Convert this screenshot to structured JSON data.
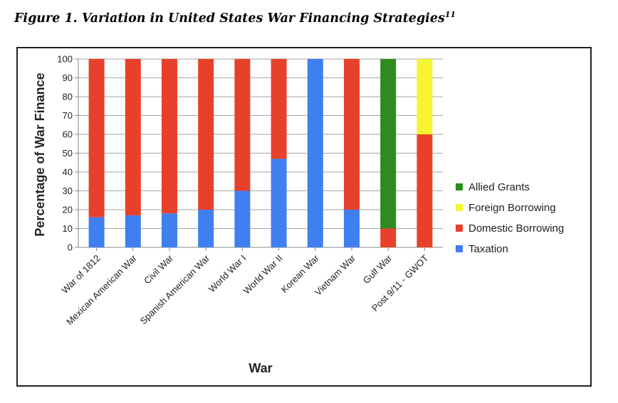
{
  "figure": {
    "title": "Figure 1. Variation in United States War Financing Strategies",
    "footnote": "11"
  },
  "chart_data": {
    "type": "bar",
    "stacked": true,
    "title": "",
    "xlabel": "War",
    "ylabel": "Percentage of War Finance",
    "ylim": [
      0,
      100
    ],
    "yticks": [
      0,
      10,
      20,
      30,
      40,
      50,
      60,
      70,
      80,
      90,
      100
    ],
    "grid": true,
    "legend_position": "right",
    "categories": [
      "War of 1812",
      "Mexican American War",
      "Civil War",
      "Spanish American War",
      "World War I",
      "World War II",
      "Korean War",
      "Vietnam War",
      "Gulf War",
      "Post 9/11 - GWOT"
    ],
    "series": [
      {
        "name": "Taxation",
        "color": "#3f7ff0",
        "values": [
          16,
          17,
          18,
          20,
          30,
          47,
          100,
          20,
          0,
          0
        ]
      },
      {
        "name": "Domestic Borrowing",
        "color": "#e8412b",
        "values": [
          84,
          83,
          82,
          80,
          70,
          53,
          0,
          80,
          10,
          60
        ]
      },
      {
        "name": "Foreign Borrowing",
        "color": "#f5f531",
        "values": [
          0,
          0,
          0,
          0,
          0,
          0,
          0,
          0,
          0,
          40
        ]
      },
      {
        "name": "Allied Grants",
        "color": "#2e8c1e",
        "values": [
          0,
          0,
          0,
          0,
          0,
          0,
          0,
          0,
          90,
          0
        ]
      }
    ],
    "legend_order": [
      "Allied Grants",
      "Foreign Borrowing",
      "Domestic Borrowing",
      "Taxation"
    ]
  }
}
